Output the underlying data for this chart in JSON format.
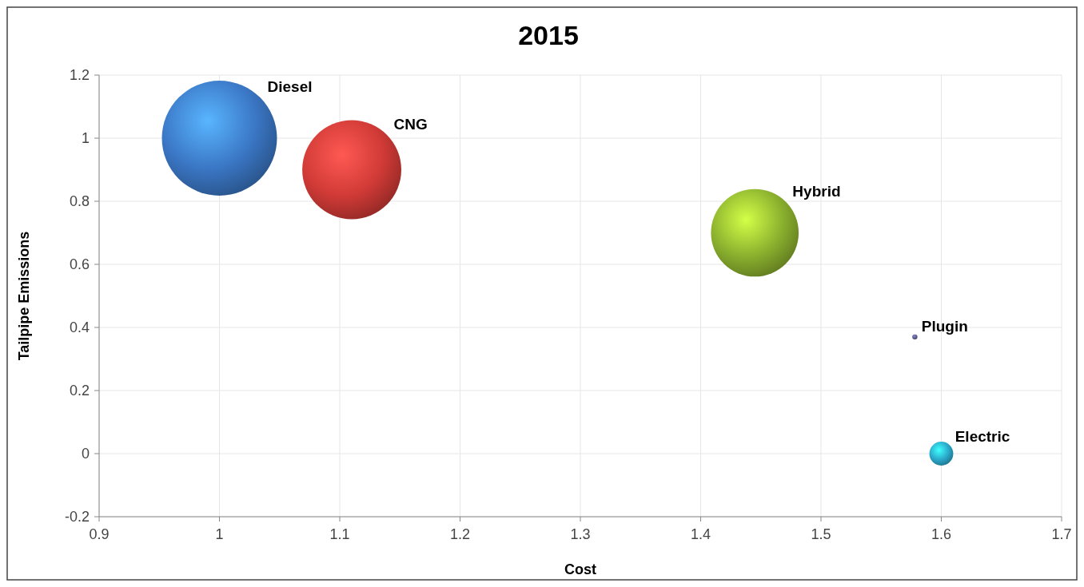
{
  "chart_data": {
    "type": "bubble",
    "title": "2015",
    "xlabel": "Cost",
    "ylabel": "Tailpipe Emissions",
    "series": [
      {
        "name": "Diesel",
        "color": "#3a76c4",
        "x": [
          1.0
        ],
        "values": [
          1.0
        ],
        "sizes": [
          1
        ]
      },
      {
        "name": "CNG",
        "color": "#d03a36",
        "x": [
          1.11
        ],
        "values": [
          0.9
        ],
        "sizes": [
          0.74
        ]
      },
      {
        "name": "Hybrid",
        "color": "#8ab02e",
        "x": [
          1.445
        ],
        "values": [
          0.7
        ],
        "sizes": [
          0.58
        ]
      },
      {
        "name": "Plugin",
        "color": "#5a5a8a",
        "x": [
          1.578
        ],
        "values": [
          0.37
        ],
        "sizes": [
          0.002
        ]
      },
      {
        "name": "Electric",
        "color": "#2aa6c8",
        "x": [
          1.6
        ],
        "values": [
          0.0
        ],
        "sizes": [
          0.043
        ]
      }
    ],
    "xlim": [
      0.9,
      1.7
    ],
    "xticks": [
      0.9,
      1,
      1.1,
      1.2,
      1.3,
      1.4,
      1.5,
      1.6,
      1.7
    ],
    "ylim": [
      -0.2,
      1.2
    ],
    "yticks": [
      -0.2,
      0,
      0.2,
      0.4,
      0.6,
      0.8,
      1,
      1.2
    ],
    "grid": true
  }
}
